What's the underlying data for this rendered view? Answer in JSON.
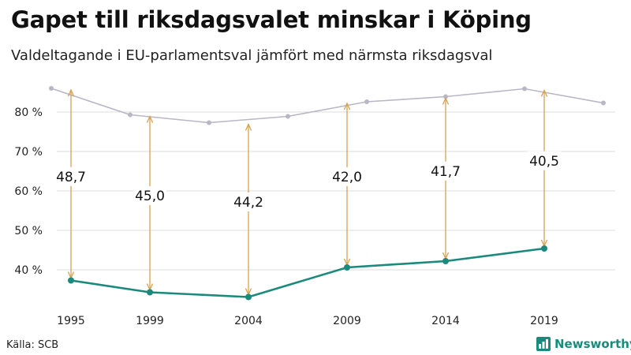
{
  "title": "Gapet till riksdagsvalet minskar i Köping",
  "subtitle": "Valdeltagande i EU-parlamentsval jämfört med närmsta riksdagsval",
  "source": "Källa: SCB",
  "brand": "Newsworthy",
  "colors": {
    "riksdag_line": "#b9b6c6",
    "eu_line": "#1a8a7c",
    "gap_arrow": "#d7a250",
    "grid": "#dddddd",
    "brand": "#1a8a7c"
  },
  "chart_data": {
    "type": "line",
    "ylim": [
      33,
      90
    ],
    "y_ticks": [
      40,
      50,
      60,
      70,
      80
    ],
    "y_tick_labels": [
      "40 %",
      "50 %",
      "60 %",
      "70 %",
      "80 %"
    ],
    "x_tick_labels": [
      "1995",
      "1999",
      "2004",
      "2009",
      "2014",
      "2019"
    ],
    "grid": true,
    "series": [
      {
        "key": "riksdag",
        "x": [
          1994,
          1998,
          2002,
          2006,
          2010,
          2014,
          2018,
          2022
        ],
        "values": [
          86.0,
          79.3,
          77.3,
          78.9,
          82.6,
          83.9,
          85.9,
          82.3
        ]
      },
      {
        "key": "eu",
        "x": [
          1995,
          1999,
          2004,
          2009,
          2014,
          2019
        ],
        "values": [
          37.3,
          34.3,
          33.1,
          40.6,
          42.2,
          45.4
        ]
      }
    ],
    "gaps": [
      {
        "x": 1995,
        "from": 37.3,
        "to": 86.0,
        "label": "48,7"
      },
      {
        "x": 1999,
        "from": 34.3,
        "to": 79.3,
        "label": "45,0"
      },
      {
        "x": 2004,
        "from": 33.1,
        "to": 77.3,
        "label": "44,2"
      },
      {
        "x": 2009,
        "from": 40.6,
        "to": 82.6,
        "label": "42,0"
      },
      {
        "x": 2014,
        "from": 42.2,
        "to": 83.9,
        "label": "41,7"
      },
      {
        "x": 2019,
        "from": 45.4,
        "to": 85.9,
        "label": "40,5"
      }
    ]
  }
}
